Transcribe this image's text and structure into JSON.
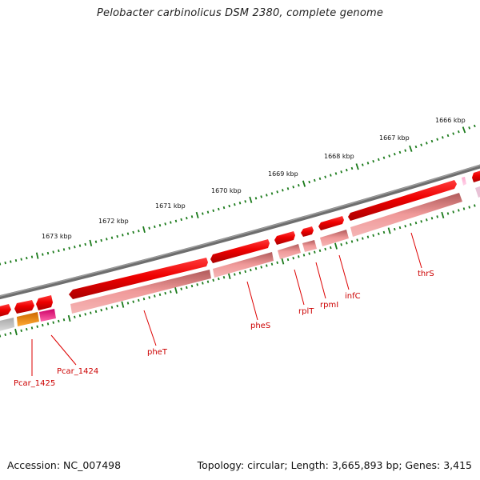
{
  "title": "Pelobacter carbinolicus DSM 2380, complete genome",
  "accession": "Accession: NC_007498",
  "topology": "Topology: circular; Length: 3,665,893 bp; Genes: 3,415",
  "colors": {
    "backbone": "#7a7a7a",
    "tick": "#1a7a1a",
    "label": "#cc0000",
    "gene_red": "#ee0000",
    "gene_pink": "#ef8f8f",
    "gene_orange": "#ff9900",
    "gene_magenta": "#ff3399",
    "gene_gray": "#c8c8c8"
  },
  "kbp_labels": [
    {
      "kbp": 1673,
      "text": "1673 kbp"
    },
    {
      "kbp": 1672,
      "text": "1672 kbp"
    },
    {
      "kbp": 1671,
      "text": "1671 kbp"
    },
    {
      "kbp": 1670,
      "text": "1670 kbp"
    },
    {
      "kbp": 1669,
      "text": "1669 kbp"
    },
    {
      "kbp": 1668,
      "text": "1668 kbp"
    },
    {
      "kbp": 1667,
      "text": "1667 kbp"
    },
    {
      "kbp": 1666,
      "text": "1666 kbp"
    }
  ],
  "genes": [
    {
      "name": "Pcar_1425"
    },
    {
      "name": "Pcar_1424"
    },
    {
      "name": "pheT"
    },
    {
      "name": "pheS"
    },
    {
      "name": "rplT"
    },
    {
      "name": "rpmI"
    },
    {
      "name": "infC"
    },
    {
      "name": "thrS"
    }
  ]
}
